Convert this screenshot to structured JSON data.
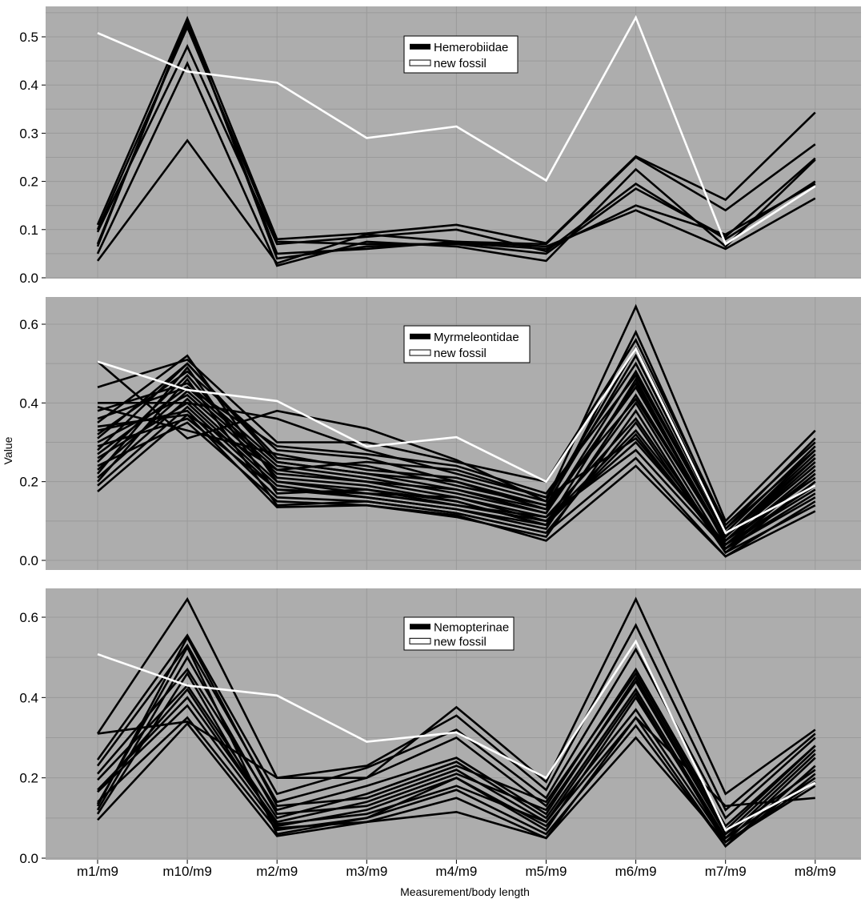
{
  "chart_data": {
    "type": "line",
    "categories": [
      "m1/m9",
      "m10/m9",
      "m2/m9",
      "m3/m9",
      "m4/m9",
      "m5/m9",
      "m6/m9",
      "m7/m9",
      "m8/m9"
    ],
    "xlabel": "Measurement/body length",
    "ylabel": "Value",
    "colors": {
      "background": "#adadad",
      "grid": "#9a9a9a",
      "group_line": "#000000",
      "fossil_line": "#ffffff"
    },
    "panels": [
      {
        "legend": [
          "Hemerobiidae",
          "new fossil"
        ],
        "ylim": [
          0,
          0.57
        ],
        "yticks": [
          "0.0",
          "0.1",
          "0.2",
          "0.3",
          "0.4",
          "0.5"
        ],
        "fossil": [
          0.508,
          0.428,
          0.405,
          0.29,
          0.314,
          0.202,
          0.54,
          0.07,
          0.19
        ],
        "series": [
          [
            0.11,
            0.538,
            0.08,
            0.092,
            0.11,
            0.072,
            0.252,
            0.162,
            0.343
          ],
          [
            0.035,
            0.285,
            0.03,
            0.09,
            0.075,
            0.065,
            0.14,
            0.06,
            0.165
          ],
          [
            0.095,
            0.48,
            0.07,
            0.085,
            0.1,
            0.055,
            0.195,
            0.08,
            0.2
          ],
          [
            0.05,
            0.445,
            0.025,
            0.075,
            0.065,
            0.035,
            0.225,
            0.065,
            0.245
          ],
          [
            0.07,
            0.53,
            0.05,
            0.06,
            0.075,
            0.07,
            0.25,
            0.14,
            0.277
          ],
          [
            0.065,
            0.535,
            0.04,
            0.065,
            0.072,
            0.06,
            0.15,
            0.09,
            0.195
          ],
          [
            0.1,
            0.52,
            0.075,
            0.07,
            0.07,
            0.05,
            0.185,
            0.085,
            0.248
          ]
        ]
      },
      {
        "legend": [
          "Myrmeleontidae",
          "new fossil"
        ],
        "ylim": [
          0,
          0.67
        ],
        "yticks": [
          "0.0",
          "0.2",
          "0.4",
          "0.6"
        ],
        "fossil": [
          0.505,
          0.433,
          0.405,
          0.289,
          0.313,
          0.2,
          0.538,
          0.07,
          0.19
        ],
        "series": [
          [
            0.505,
            0.31,
            0.38,
            0.335,
            0.255,
            0.15,
            0.645,
            0.1,
            0.33
          ],
          [
            0.44,
            0.51,
            0.3,
            0.3,
            0.25,
            0.2,
            0.56,
            0.09,
            0.3
          ],
          [
            0.4,
            0.4,
            0.36,
            0.28,
            0.22,
            0.16,
            0.5,
            0.06,
            0.27
          ],
          [
            0.38,
            0.45,
            0.25,
            0.22,
            0.18,
            0.12,
            0.45,
            0.05,
            0.25
          ],
          [
            0.35,
            0.52,
            0.2,
            0.18,
            0.15,
            0.09,
            0.4,
            0.03,
            0.22
          ],
          [
            0.33,
            0.38,
            0.16,
            0.15,
            0.12,
            0.07,
            0.35,
            0.02,
            0.2
          ],
          [
            0.32,
            0.48,
            0.28,
            0.26,
            0.2,
            0.13,
            0.58,
            0.08,
            0.28
          ],
          [
            0.3,
            0.42,
            0.22,
            0.2,
            0.16,
            0.1,
            0.3,
            0.04,
            0.18
          ],
          [
            0.29,
            0.36,
            0.18,
            0.17,
            0.14,
            0.11,
            0.28,
            0.03,
            0.16
          ],
          [
            0.28,
            0.5,
            0.26,
            0.24,
            0.19,
            0.14,
            0.52,
            0.07,
            0.29
          ],
          [
            0.27,
            0.44,
            0.24,
            0.21,
            0.17,
            0.12,
            0.48,
            0.06,
            0.26
          ],
          [
            0.26,
            0.4,
            0.19,
            0.16,
            0.13,
            0.08,
            0.42,
            0.05,
            0.24
          ],
          [
            0.25,
            0.47,
            0.21,
            0.19,
            0.15,
            0.09,
            0.46,
            0.04,
            0.23
          ],
          [
            0.24,
            0.35,
            0.15,
            0.14,
            0.11,
            0.06,
            0.38,
            0.02,
            0.14
          ],
          [
            0.23,
            0.43,
            0.23,
            0.2,
            0.18,
            0.13,
            0.44,
            0.05,
            0.21
          ],
          [
            0.22,
            0.49,
            0.17,
            0.18,
            0.14,
            0.1,
            0.33,
            0.04,
            0.19
          ],
          [
            0.21,
            0.41,
            0.2,
            0.17,
            0.16,
            0.11,
            0.36,
            0.03,
            0.17
          ],
          [
            0.2,
            0.46,
            0.14,
            0.15,
            0.12,
            0.07,
            0.26,
            0.01,
            0.15
          ],
          [
            0.19,
            0.39,
            0.18,
            0.16,
            0.13,
            0.09,
            0.32,
            0.03,
            0.2
          ],
          [
            0.175,
            0.37,
            0.135,
            0.14,
            0.115,
            0.05,
            0.24,
            0.01,
            0.125
          ],
          [
            0.39,
            0.33,
            0.27,
            0.23,
            0.21,
            0.15,
            0.54,
            0.08,
            0.31
          ],
          [
            0.36,
            0.44,
            0.29,
            0.27,
            0.24,
            0.17,
            0.47,
            0.06,
            0.28
          ],
          [
            0.31,
            0.5,
            0.25,
            0.22,
            0.2,
            0.14,
            0.41,
            0.05,
            0.26
          ],
          [
            0.34,
            0.37,
            0.23,
            0.25,
            0.23,
            0.16,
            0.31,
            0.04,
            0.22
          ]
        ]
      },
      {
        "legend": [
          "Nemopterinae",
          "new fossil"
        ],
        "ylim": [
          0,
          0.67
        ],
        "yticks": [
          "0.0",
          "0.2",
          "0.4",
          "0.6"
        ],
        "fossil": [
          0.508,
          0.43,
          0.405,
          0.29,
          0.313,
          0.2,
          0.54,
          0.07,
          0.188
        ],
        "series": [
          [
            0.31,
            0.645,
            0.2,
            0.2,
            0.376,
            0.19,
            0.645,
            0.16,
            0.32
          ],
          [
            0.31,
            0.34,
            0.2,
            0.23,
            0.355,
            0.17,
            0.58,
            0.12,
            0.31
          ],
          [
            0.245,
            0.555,
            0.16,
            0.225,
            0.32,
            0.15,
            0.52,
            0.1,
            0.3
          ],
          [
            0.23,
            0.53,
            0.14,
            0.2,
            0.3,
            0.13,
            0.47,
            0.08,
            0.28
          ],
          [
            0.21,
            0.47,
            0.12,
            0.18,
            0.25,
            0.11,
            0.45,
            0.06,
            0.27
          ],
          [
            0.195,
            0.43,
            0.1,
            0.16,
            0.24,
            0.1,
            0.42,
            0.05,
            0.26
          ],
          [
            0.17,
            0.4,
            0.09,
            0.14,
            0.22,
            0.09,
            0.41,
            0.04,
            0.25
          ],
          [
            0.165,
            0.38,
            0.08,
            0.12,
            0.2,
            0.08,
            0.35,
            0.03,
            0.23
          ],
          [
            0.14,
            0.35,
            0.07,
            0.1,
            0.17,
            0.06,
            0.33,
            0.03,
            0.21
          ],
          [
            0.13,
            0.55,
            0.13,
            0.15,
            0.23,
            0.14,
            0.46,
            0.07,
            0.28
          ],
          [
            0.12,
            0.5,
            0.11,
            0.13,
            0.21,
            0.12,
            0.44,
            0.06,
            0.22
          ],
          [
            0.11,
            0.46,
            0.075,
            0.09,
            0.15,
            0.05,
            0.3,
            0.04,
            0.19
          ],
          [
            0.095,
            0.335,
            0.055,
            0.09,
            0.115,
            0.05,
            0.35,
            0.13,
            0.15
          ],
          [
            0.135,
            0.525,
            0.06,
            0.1,
            0.2,
            0.07,
            0.4,
            0.05,
            0.2
          ],
          [
            0.165,
            0.42,
            0.085,
            0.11,
            0.18,
            0.09,
            0.37,
            0.04,
            0.18
          ]
        ]
      }
    ]
  }
}
